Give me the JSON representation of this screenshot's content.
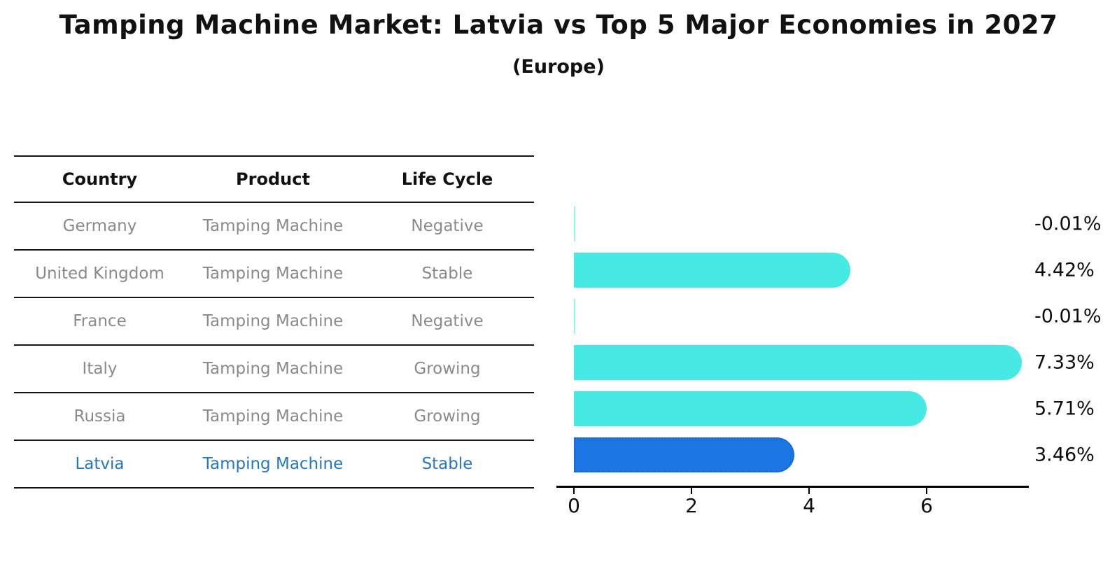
{
  "header": {
    "title": "Tamping Machine Market: Latvia vs Top 5 Major Economies in 2027",
    "subtitle": "(Europe)"
  },
  "table": {
    "headers": [
      "Country",
      "Product",
      "Life Cycle"
    ],
    "rows": [
      {
        "country": "Germany",
        "product": "Tamping Machine",
        "life_cycle": "Negative",
        "highlight": false
      },
      {
        "country": "United Kingdom",
        "product": "Tamping Machine",
        "life_cycle": "Stable",
        "highlight": false
      },
      {
        "country": "France",
        "product": "Tamping Machine",
        "life_cycle": "Negative",
        "highlight": false
      },
      {
        "country": "Italy",
        "product": "Tamping Machine",
        "life_cycle": "Growing",
        "highlight": false
      },
      {
        "country": "Russia",
        "product": "Tamping Machine",
        "life_cycle": "Growing",
        "highlight": false
      },
      {
        "country": "Latvia",
        "product": "Tamping Machine",
        "life_cycle": "Stable",
        "highlight": true
      }
    ]
  },
  "chart_data": {
    "type": "bar",
    "orientation": "horizontal",
    "title": "Tamping Machine Market: Latvia vs Top 5 Major Economies in 2027",
    "subtitle": "(Europe)",
    "categories": [
      "Germany",
      "United Kingdom",
      "France",
      "Italy",
      "Russia",
      "Latvia"
    ],
    "values": [
      -0.01,
      4.42,
      -0.01,
      7.33,
      5.71,
      3.46
    ],
    "labels": [
      "-0.01%",
      "4.42%",
      "-0.01%",
      "7.33%",
      "5.71%",
      "3.46%"
    ],
    "xticks": [
      0,
      2,
      4,
      6
    ],
    "xlim": [
      -0.3,
      7.75
    ],
    "grid": false,
    "legend": "none",
    "highlight_index": 5,
    "colors": {
      "bar": "#47EAE2",
      "highlight_bar": "#1B76E4",
      "highlight_border": "#1663CF",
      "highlight_text": "#2578BF",
      "table_text": "#8A8A8A"
    }
  }
}
